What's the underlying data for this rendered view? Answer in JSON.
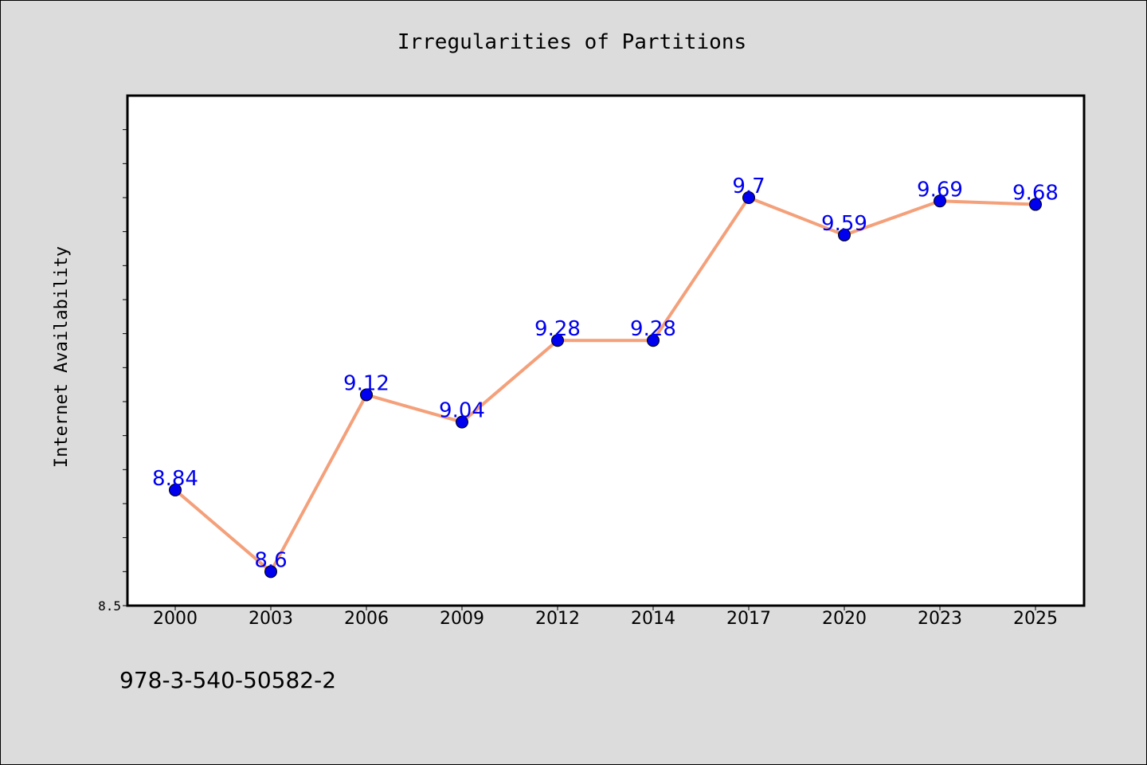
{
  "chart_data": {
    "type": "line",
    "title": "Irregularities of Partitions",
    "xlabel": "",
    "ylabel": "Internet Availability",
    "categories": [
      "2000",
      "2003",
      "2006",
      "2009",
      "2012",
      "2014",
      "2017",
      "2020",
      "2023",
      "2025"
    ],
    "series": [
      {
        "values": [
          8.84,
          8.6,
          9.12,
          9.04,
          9.28,
          9.28,
          9.7,
          9.59,
          9.69,
          9.68
        ],
        "data_labels": [
          "8.84",
          "8.6",
          "9.12",
          "9.04",
          "9.28",
          "9.28",
          "9.7",
          "9.59",
          "9.69",
          "9.68"
        ]
      }
    ],
    "ylim": [
      8.5,
      10.0
    ],
    "y_tick_labels": [
      "8.5"
    ],
    "grid": false,
    "legend": "none",
    "colors": {
      "line": "#f4a07a",
      "marker": "#0000ee",
      "label": "#0000ee"
    }
  },
  "footer": {
    "isbn": "978-3-540-50582-2"
  }
}
